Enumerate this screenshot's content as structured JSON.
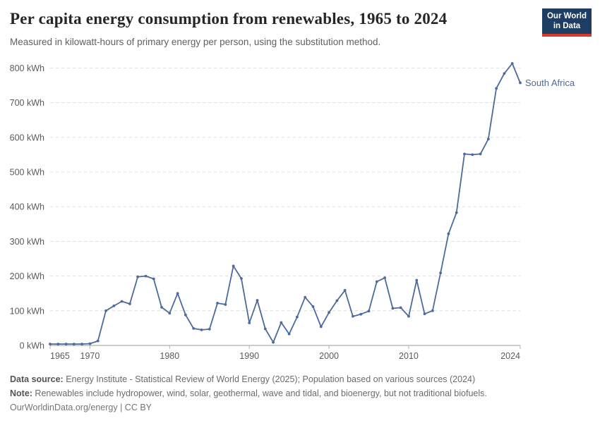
{
  "header": {
    "title": "Per capita energy consumption from renewables, 1965 to 2024",
    "subtitle": "Measured in kilowatt-hours of primary energy per person, using the substitution method.",
    "logo": {
      "line1": "Our World",
      "line2": "in Data"
    }
  },
  "chart_data": {
    "type": "line",
    "title": "Per capita energy consumption from renewables, 1965 to 2024",
    "unit": "kWh",
    "xlim": [
      1965,
      2024
    ],
    "ylim": [
      0,
      800
    ],
    "x_ticks": [
      1965,
      1970,
      1980,
      1990,
      2000,
      2010,
      2024
    ],
    "y_ticks": [
      0,
      100,
      200,
      300,
      400,
      500,
      600,
      700,
      800
    ],
    "grid": "horizontal-dashed",
    "legend_position": "end-of-line-label",
    "colors": {
      "line": "#4c6a9c",
      "grid": "#dcdcdc",
      "axis": "#9a9a9a",
      "tick": "#b3b3b3",
      "tick_label": "#5b5b5b"
    },
    "series": [
      {
        "name": "South Africa",
        "color": "#4c6a9c",
        "x": [
          1965,
          1966,
          1967,
          1968,
          1969,
          1970,
          1971,
          1972,
          1973,
          1974,
          1975,
          1976,
          1977,
          1978,
          1979,
          1980,
          1981,
          1982,
          1983,
          1984,
          1985,
          1986,
          1987,
          1988,
          1989,
          1990,
          1991,
          1992,
          1993,
          1994,
          1995,
          1996,
          1997,
          1998,
          1999,
          2000,
          2001,
          2002,
          2003,
          2004,
          2005,
          2006,
          2007,
          2008,
          2009,
          2010,
          2011,
          2012,
          2013,
          2014,
          2015,
          2016,
          2017,
          2018,
          2019,
          2020,
          2021,
          2022,
          2023,
          2024
        ],
        "values": [
          4,
          4,
          4,
          4,
          4,
          5,
          13,
          100,
          114,
          127,
          120,
          198,
          200,
          192,
          110,
          93,
          150,
          88,
          49,
          45,
          47,
          122,
          118,
          229,
          193,
          65,
          130,
          48,
          9,
          66,
          33,
          82,
          139,
          112,
          54,
          95,
          129,
          159,
          84,
          90,
          99,
          184,
          195,
          107,
          109,
          84,
          188,
          91,
          100,
          209,
          322,
          383,
          552,
          550,
          552,
          595,
          741,
          784,
          813,
          757
        ]
      }
    ]
  },
  "footer": {
    "source_label": "Data source:",
    "source_text": " Energy Institute - Statistical Review of World Energy (2025); Population based on various sources (2024)",
    "note_label": "Note:",
    "note_text": " Renewables include hydropower, wind, solar, geothermal, wave and tidal, and bioenergy, but not traditional biofuels.",
    "license": "OurWorldinData.org/energy | CC BY"
  }
}
